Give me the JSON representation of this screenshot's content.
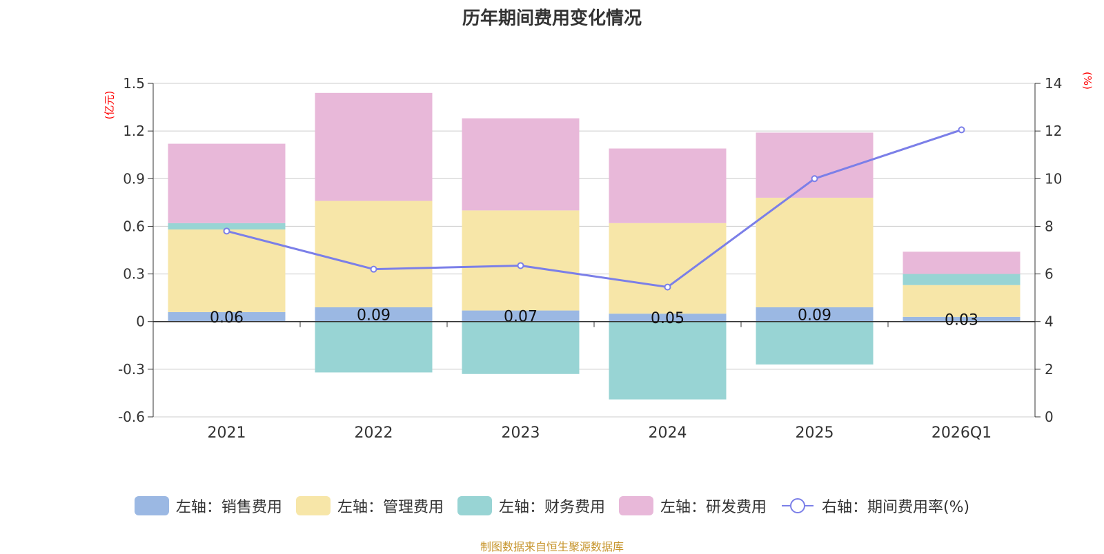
{
  "chart_data": {
    "type": "bar",
    "title": "历年期间费用变化情况",
    "left_axis_unit": "(亿元)",
    "right_axis_unit": "(%)",
    "categories": [
      "2021",
      "2022",
      "2023",
      "2024",
      "2025",
      "2026Q1"
    ],
    "left_axis": {
      "min": -0.6,
      "max": 1.5,
      "ticks": [
        -0.6,
        -0.3,
        0,
        0.3,
        0.6,
        0.9,
        1.2,
        1.5
      ],
      "tick_labels": [
        "-0.6",
        "-0.3",
        "0",
        "0.3",
        "0.6",
        "0.9",
        "1.2",
        "1.5"
      ]
    },
    "right_axis": {
      "min": 0,
      "max": 14,
      "ticks": [
        0,
        2,
        4,
        6,
        8,
        10,
        12,
        14
      ],
      "tick_labels": [
        "0",
        "2",
        "4",
        "6",
        "8",
        "10",
        "12",
        "14"
      ]
    },
    "grid": true,
    "series": [
      {
        "name": "左轴：销售费用",
        "type": "bar",
        "axis": "left",
        "color": "#9bb8e3",
        "values": [
          0.06,
          0.09,
          0.07,
          0.05,
          0.09,
          0.03
        ],
        "labels": [
          "0.06",
          "0.09",
          "0.07",
          "0.05",
          "0.09",
          "0.03"
        ]
      },
      {
        "name": "左轴：管理费用",
        "type": "bar",
        "axis": "left",
        "color": "#f7e6a8",
        "values": [
          0.52,
          0.67,
          0.63,
          0.57,
          0.69,
          0.2
        ]
      },
      {
        "name": "左轴：财务费用",
        "type": "bar",
        "axis": "left",
        "color": "#98d4d4",
        "values": [
          0.04,
          -0.32,
          -0.33,
          -0.49,
          -0.27,
          0.07
        ]
      },
      {
        "name": "左轴：研发费用",
        "type": "bar",
        "axis": "left",
        "color": "#e8b8d9",
        "values": [
          0.5,
          0.68,
          0.58,
          0.47,
          0.41,
          0.14
        ]
      },
      {
        "name": "右轴：期间费用率(%)",
        "type": "line",
        "axis": "right",
        "color": "#7b7fe8",
        "values": [
          7.8,
          6.2,
          6.35,
          5.45,
          10.0,
          12.05
        ]
      }
    ],
    "legend_position": "bottom"
  },
  "source": "制图数据来自恒生聚源数据库"
}
